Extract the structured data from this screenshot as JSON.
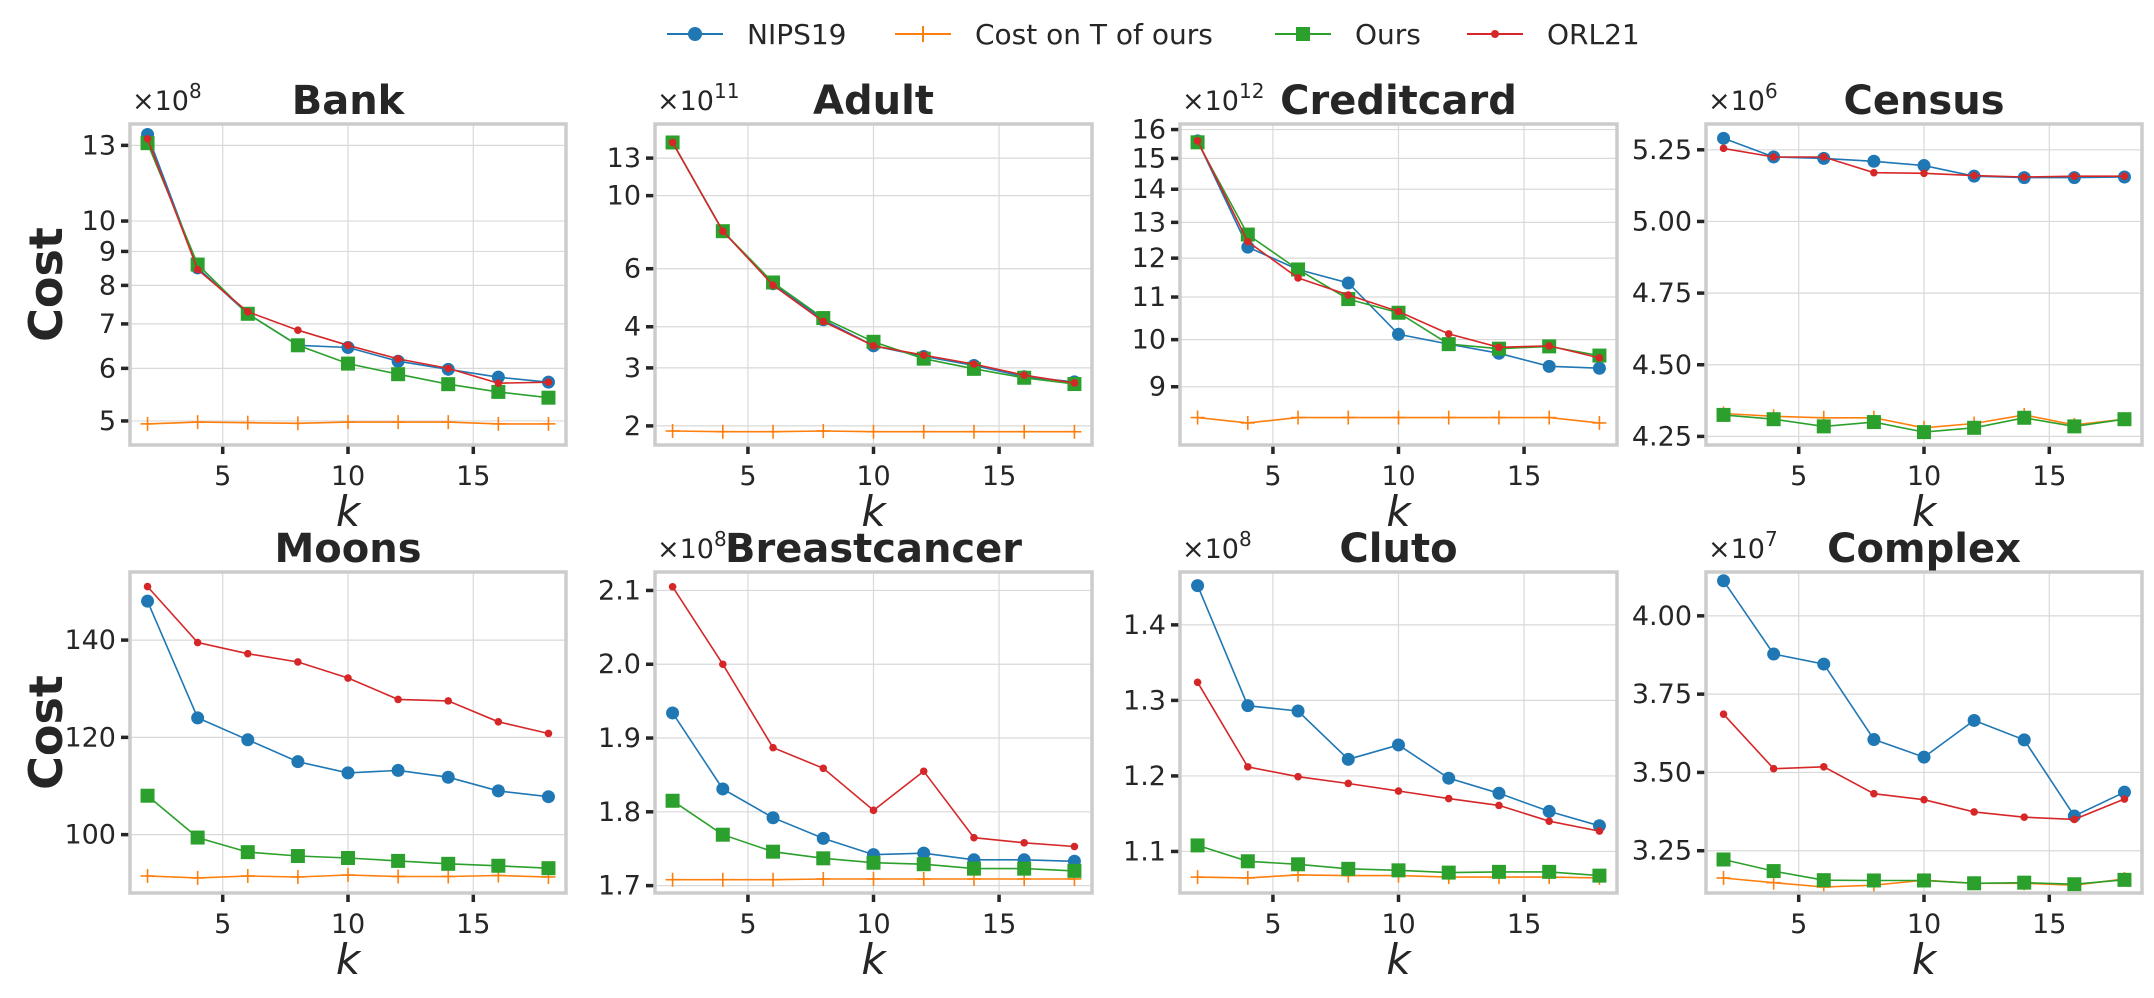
{
  "legend": {
    "nips": "NIPS19",
    "cost_t": "Cost on T of ours",
    "ours": "Ours",
    "orl": "ORL21"
  },
  "colors": {
    "nips": "#1f77b4",
    "cost_t": "#ff7f0e",
    "ours": "#2ca02c",
    "orl": "#d62728",
    "grid": "#d9d9d9",
    "frame": "#cccccc",
    "text": "#262626"
  },
  "chart_data": [
    {
      "type": "line",
      "title": "Bank",
      "xlabel": "k",
      "ylabel": "Cost",
      "multiplier": "×10",
      "exponent": "8",
      "yscale": "log",
      "xlim": [
        1.3,
        18.7
      ],
      "ylim": [
        4.6,
        14.0
      ],
      "xticks": [
        5,
        10,
        15
      ],
      "yticks": [
        5,
        6,
        7,
        8,
        9,
        10,
        13
      ],
      "x": [
        2,
        4,
        6,
        8,
        10,
        12,
        14,
        16,
        18
      ],
      "series": [
        {
          "name": "NIPS19",
          "key": "nips",
          "values": [
            13.5,
            8.5,
            7.25,
            6.5,
            6.45,
            6.15,
            5.98,
            5.82,
            5.72
          ]
        },
        {
          "name": "Cost on T of ours",
          "key": "cost_t",
          "values": [
            4.95,
            4.98,
            4.97,
            4.96,
            4.98,
            4.98,
            4.98,
            4.95,
            4.95
          ]
        },
        {
          "name": "Ours",
          "key": "ours",
          "values": [
            13.1,
            8.6,
            7.25,
            6.5,
            6.1,
            5.88,
            5.68,
            5.53,
            5.42
          ]
        },
        {
          "name": "ORL21",
          "key": "orl",
          "values": [
            13.3,
            8.45,
            7.3,
            6.85,
            6.5,
            6.2,
            6.0,
            5.7,
            5.72
          ]
        }
      ]
    },
    {
      "type": "line",
      "title": "Adult",
      "xlabel": "k",
      "ylabel": "",
      "multiplier": "×10",
      "exponent": "11",
      "yscale": "log",
      "xlim": [
        1.3,
        18.7
      ],
      "ylim": [
        1.75,
        16.5
      ],
      "xticks": [
        5,
        10,
        15
      ],
      "yticks": [
        2,
        3,
        4,
        6,
        10,
        13
      ],
      "x": [
        2,
        4,
        6,
        8,
        10,
        12,
        14,
        16,
        18
      ],
      "series": [
        {
          "name": "NIPS19",
          "key": "nips",
          "values": [
            14.5,
            7.8,
            5.4,
            4.2,
            3.5,
            3.25,
            3.05,
            2.82,
            2.72
          ]
        },
        {
          "name": "Cost on T of ours",
          "key": "cost_t",
          "values": [
            1.93,
            1.92,
            1.92,
            1.93,
            1.92,
            1.92,
            1.92,
            1.92,
            1.92
          ]
        },
        {
          "name": "Ours",
          "key": "ours",
          "values": [
            14.5,
            7.8,
            5.45,
            4.25,
            3.6,
            3.2,
            2.98,
            2.8,
            2.68
          ]
        },
        {
          "name": "ORL21",
          "key": "orl",
          "values": [
            14.5,
            7.8,
            5.35,
            4.15,
            3.5,
            3.28,
            3.08,
            2.85,
            2.7
          ]
        }
      ]
    },
    {
      "type": "line",
      "title": "Creditcard",
      "xlabel": "k",
      "ylabel": "",
      "multiplier": "×10",
      "exponent": "12",
      "yscale": "log",
      "xlim": [
        1.3,
        18.7
      ],
      "ylim": [
        7.9,
        16.2
      ],
      "xticks": [
        5,
        10,
        15
      ],
      "yticks": [
        9,
        10,
        11,
        12,
        13,
        14,
        15,
        16
      ],
      "x": [
        2,
        4,
        6,
        8,
        10,
        12,
        14,
        16,
        18
      ],
      "series": [
        {
          "name": "NIPS19",
          "key": "nips",
          "values": [
            15.6,
            12.3,
            11.7,
            11.35,
            10.12,
            9.9,
            9.7,
            9.42,
            9.38
          ]
        },
        {
          "name": "Cost on T of ours",
          "key": "cost_t",
          "values": [
            8.4,
            8.3,
            8.4,
            8.4,
            8.4,
            8.4,
            8.4,
            8.4,
            8.3
          ]
        },
        {
          "name": "Ours",
          "key": "ours",
          "values": [
            15.55,
            12.65,
            11.7,
            10.95,
            10.62,
            9.9,
            9.8,
            9.85,
            9.65
          ]
        },
        {
          "name": "ORL21",
          "key": "orl",
          "values": [
            15.6,
            12.45,
            11.48,
            11.05,
            10.65,
            10.13,
            9.83,
            9.86,
            9.6
          ]
        }
      ]
    },
    {
      "type": "line",
      "title": "Census",
      "xlabel": "k",
      "ylabel": "",
      "multiplier": "×10",
      "exponent": "6",
      "yscale": "linear",
      "xlim": [
        1.3,
        18.7
      ],
      "ylim": [
        4.22,
        5.34
      ],
      "xticks": [
        5,
        10,
        15
      ],
      "yticks": [
        4.25,
        4.5,
        4.75,
        5.0,
        5.25
      ],
      "yticklabels": [
        "4.25",
        "4.50",
        "4.75",
        "5.00",
        "5.25"
      ],
      "x": [
        2,
        4,
        6,
        8,
        10,
        12,
        14,
        16,
        18
      ],
      "series": [
        {
          "name": "NIPS19",
          "key": "nips",
          "values": [
            5.29,
            5.225,
            5.22,
            5.21,
            5.195,
            5.158,
            5.153,
            5.153,
            5.155
          ]
        },
        {
          "name": "Cost on T of ours",
          "key": "cost_t",
          "values": [
            4.33,
            4.32,
            4.315,
            4.315,
            4.28,
            4.295,
            4.325,
            4.29,
            4.31
          ]
        },
        {
          "name": "Ours",
          "key": "ours",
          "values": [
            4.325,
            4.31,
            4.285,
            4.3,
            4.265,
            4.28,
            4.315,
            4.285,
            4.31
          ]
        },
        {
          "name": "ORL21",
          "key": "orl",
          "values": [
            5.255,
            5.225,
            5.225,
            5.17,
            5.168,
            5.16,
            5.155,
            5.158,
            5.158
          ]
        }
      ]
    },
    {
      "type": "line",
      "title": "Moons",
      "xlabel": "k",
      "ylabel": "Cost",
      "multiplier": "",
      "exponent": "",
      "yscale": "linear",
      "xlim": [
        1.3,
        18.7
      ],
      "ylim": [
        88,
        154
      ],
      "xticks": [
        5,
        10,
        15
      ],
      "yticks": [
        100,
        120,
        140
      ],
      "x": [
        2,
        4,
        6,
        8,
        10,
        12,
        14,
        16,
        18
      ],
      "series": [
        {
          "name": "NIPS19",
          "key": "nips",
          "values": [
            148,
            124,
            119.5,
            115,
            112.7,
            113.2,
            111.8,
            109,
            107.8
          ]
        },
        {
          "name": "Cost on T of ours",
          "key": "cost_t",
          "values": [
            91.5,
            91.1,
            91.5,
            91.3,
            91.7,
            91.4,
            91.4,
            91.6,
            91.3
          ]
        },
        {
          "name": "Ours",
          "key": "ours",
          "values": [
            108,
            99.4,
            96.4,
            95.6,
            95.2,
            94.6,
            94.0,
            93.6,
            93.1
          ]
        },
        {
          "name": "ORL21",
          "key": "orl",
          "values": [
            151,
            139.5,
            137.2,
            135.5,
            132.2,
            127.8,
            127.5,
            123.2,
            120.8
          ]
        }
      ]
    },
    {
      "type": "line",
      "title": "Breastcancer",
      "xlabel": "k",
      "ylabel": "",
      "multiplier": "×10",
      "exponent": "8",
      "yscale": "linear",
      "xlim": [
        1.3,
        18.7
      ],
      "ylim": [
        1.69,
        2.125
      ],
      "xticks": [
        5,
        10,
        15
      ],
      "yticks": [
        1.7,
        1.8,
        1.9,
        2.0,
        2.1
      ],
      "yticklabels": [
        "1.7",
        "1.8",
        "1.9",
        "2.0",
        "2.1"
      ],
      "x": [
        2,
        4,
        6,
        8,
        10,
        12,
        14,
        16,
        18
      ],
      "series": [
        {
          "name": "NIPS19",
          "key": "nips",
          "values": [
            1.934,
            1.831,
            1.792,
            1.764,
            1.742,
            1.744,
            1.735,
            1.735,
            1.733
          ]
        },
        {
          "name": "Cost on T of ours",
          "key": "cost_t",
          "values": [
            1.708,
            1.708,
            1.708,
            1.709,
            1.709,
            1.709,
            1.709,
            1.709,
            1.709
          ]
        },
        {
          "name": "Ours",
          "key": "ours",
          "values": [
            1.815,
            1.769,
            1.746,
            1.737,
            1.731,
            1.729,
            1.723,
            1.723,
            1.72
          ]
        },
        {
          "name": "ORL21",
          "key": "orl",
          "values": [
            2.105,
            2.0,
            1.887,
            1.859,
            1.802,
            1.855,
            1.765,
            1.758,
            1.753
          ]
        }
      ]
    },
    {
      "type": "line",
      "title": "Cluto",
      "xlabel": "k",
      "ylabel": "",
      "multiplier": "×10",
      "exponent": "8",
      "yscale": "linear",
      "xlim": [
        1.3,
        18.7
      ],
      "ylim": [
        1.045,
        1.47
      ],
      "xticks": [
        5,
        10,
        15
      ],
      "yticks": [
        1.1,
        1.2,
        1.3,
        1.4
      ],
      "yticklabels": [
        "1.1",
        "1.2",
        "1.3",
        "1.4"
      ],
      "x": [
        2,
        4,
        6,
        8,
        10,
        12,
        14,
        16,
        18
      ],
      "series": [
        {
          "name": "NIPS19",
          "key": "nips",
          "values": [
            1.452,
            1.293,
            1.286,
            1.222,
            1.241,
            1.197,
            1.177,
            1.153,
            1.134
          ]
        },
        {
          "name": "Cost on T of ours",
          "key": "cost_t",
          "values": [
            1.066,
            1.065,
            1.069,
            1.068,
            1.068,
            1.066,
            1.066,
            1.066,
            1.065
          ]
        },
        {
          "name": "Ours",
          "key": "ours",
          "values": [
            1.108,
            1.087,
            1.083,
            1.077,
            1.075,
            1.072,
            1.073,
            1.073,
            1.068
          ]
        },
        {
          "name": "ORL21",
          "key": "orl",
          "values": [
            1.324,
            1.212,
            1.199,
            1.19,
            1.18,
            1.17,
            1.161,
            1.14,
            1.127
          ]
        }
      ]
    },
    {
      "type": "line",
      "title": "Complex",
      "xlabel": "k",
      "ylabel": "",
      "multiplier": "×10",
      "exponent": "7",
      "yscale": "linear",
      "xlim": [
        1.3,
        18.7
      ],
      "ylim": [
        3.115,
        4.14
      ],
      "xticks": [
        5,
        10,
        15
      ],
      "yticks": [
        3.25,
        3.5,
        3.75,
        4.0
      ],
      "yticklabels": [
        "3.25",
        "3.50",
        "3.75",
        "4.00"
      ],
      "x": [
        2,
        4,
        6,
        8,
        10,
        12,
        14,
        16,
        18
      ],
      "series": [
        {
          "name": "NIPS19",
          "key": "nips",
          "values": [
            4.112,
            3.878,
            3.846,
            3.605,
            3.549,
            3.666,
            3.604,
            3.361,
            3.437
          ]
        },
        {
          "name": "Cost on T of ours",
          "key": "cost_t",
          "values": [
            3.163,
            3.148,
            3.134,
            3.14,
            3.156,
            3.146,
            3.146,
            3.14,
            3.16
          ]
        },
        {
          "name": "Ours",
          "key": "ours",
          "values": [
            3.222,
            3.185,
            3.156,
            3.155,
            3.155,
            3.146,
            3.148,
            3.143,
            3.157
          ]
        },
        {
          "name": "ORL21",
          "key": "orl",
          "values": [
            3.686,
            3.512,
            3.518,
            3.432,
            3.413,
            3.374,
            3.357,
            3.35,
            3.415
          ]
        }
      ]
    }
  ]
}
